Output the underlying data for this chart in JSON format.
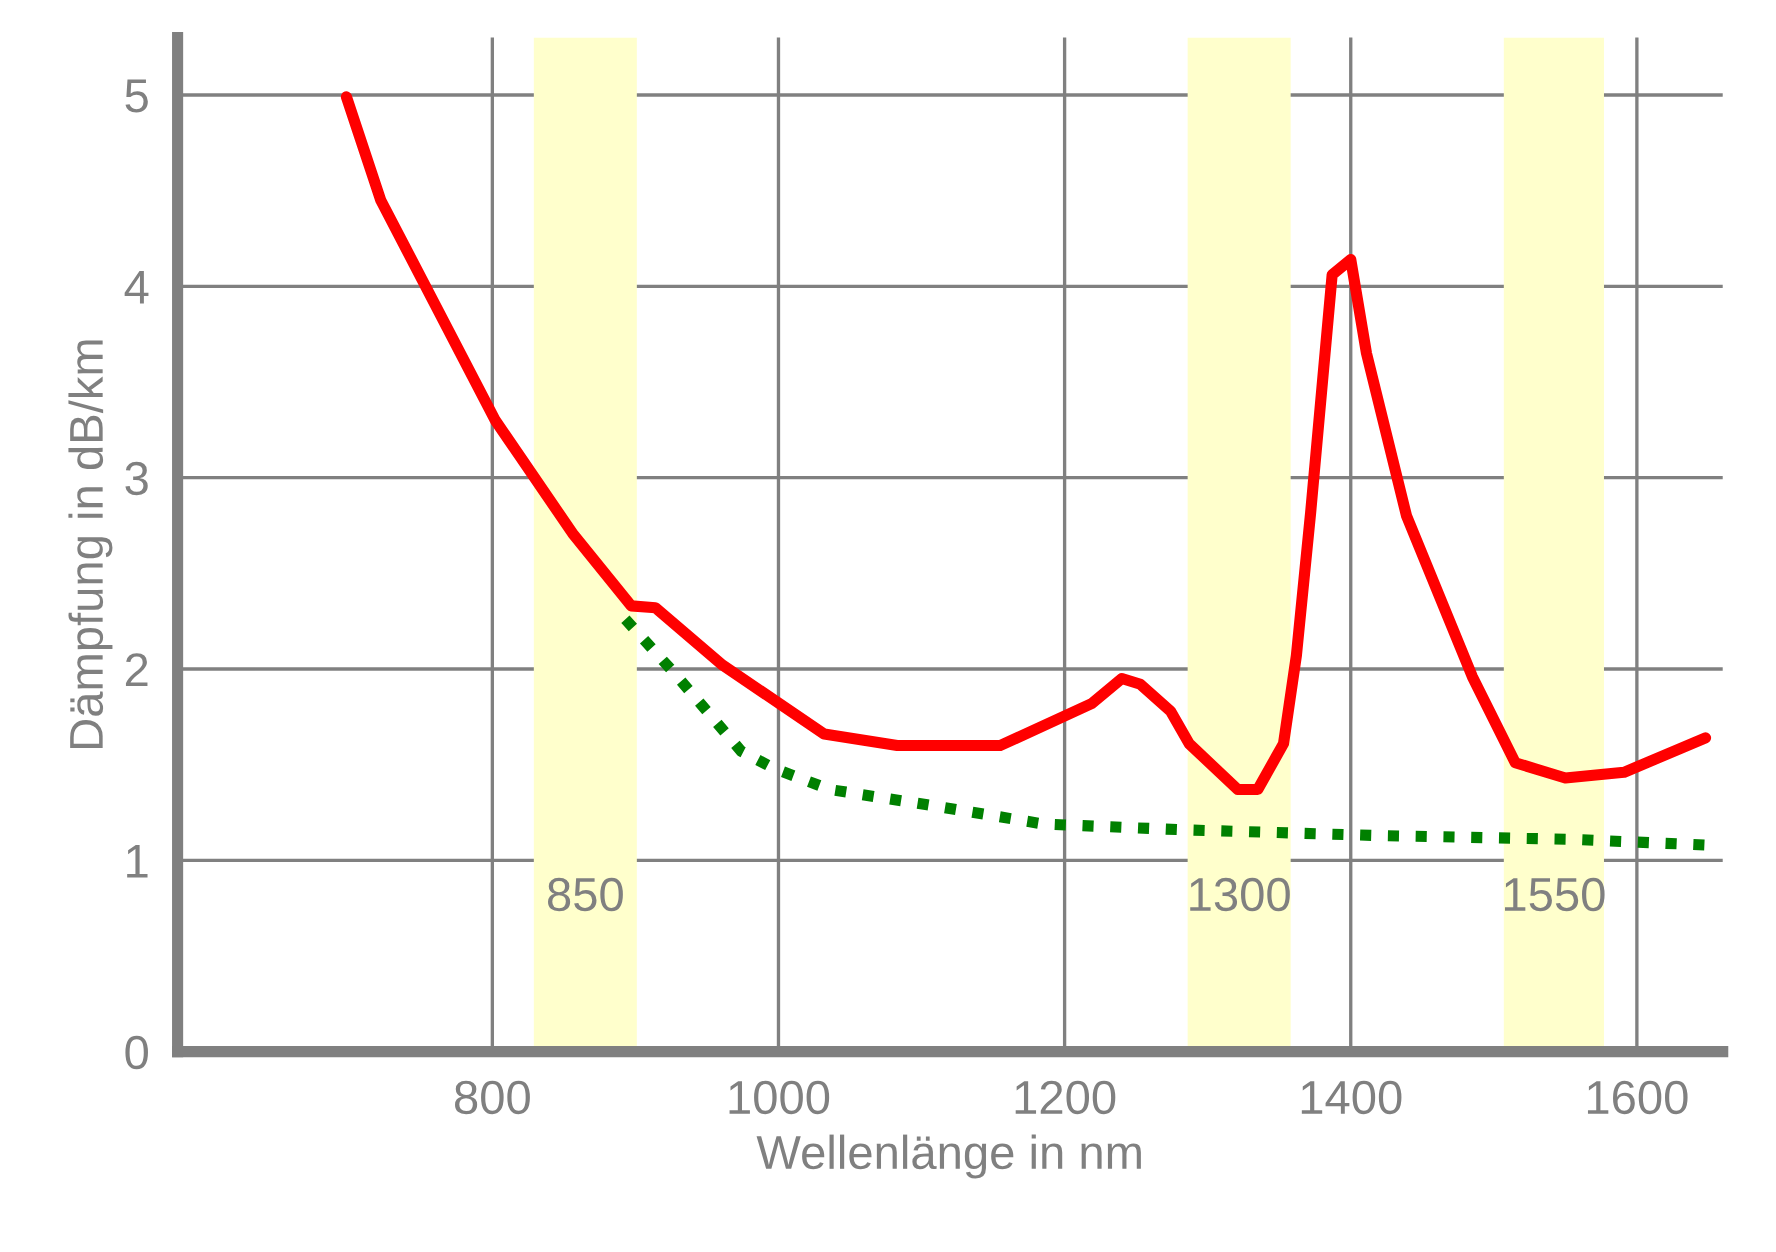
{
  "chart_data": {
    "type": "line",
    "xlabel": "Wellenlänge in nm",
    "ylabel": "Dämpfung in dB/km",
    "xlim": [
      580,
      1660
    ],
    "ylim": [
      0,
      5.3
    ],
    "xticks": [
      800,
      1000,
      1200,
      1400,
      1600
    ],
    "yticks": [
      0,
      1,
      2,
      3,
      4,
      5
    ],
    "grid": true,
    "legend": false,
    "series": [
      {
        "color": "#ff0000",
        "line_style": "solid",
        "x": [
          698,
          722,
          802,
          856,
          897,
          914,
          961,
          1032,
          1083,
          1155,
          1219,
          1240,
          1253,
          1274,
          1287,
          1321,
          1335,
          1353,
          1362,
          1372,
          1387,
          1400,
          1411,
          1439,
          1485,
          1515,
          1550,
          1591,
          1648
        ],
        "values": [
          4.99,
          4.45,
          3.3,
          2.71,
          2.33,
          2.32,
          2.02,
          1.66,
          1.6,
          1.6,
          1.82,
          1.95,
          1.92,
          1.78,
          1.61,
          1.37,
          1.37,
          1.61,
          2.07,
          2.82,
          4.06,
          4.14,
          3.65,
          2.8,
          1.96,
          1.51,
          1.43,
          1.46,
          1.64
        ]
      },
      {
        "color": "#008000",
        "line_style": "dotted",
        "x": [
          893,
          927,
          974,
          997,
          1036,
          1104,
          1185,
          1281,
          1417,
          1553,
          1648
        ],
        "values": [
          2.26,
          1.98,
          1.57,
          1.48,
          1.37,
          1.29,
          1.19,
          1.16,
          1.13,
          1.11,
          1.08
        ]
      }
    ],
    "bands": [
      {
        "axis": "x",
        "from": 829,
        "to": 901,
        "label": "850",
        "color": "#ffffcc"
      },
      {
        "axis": "x",
        "from": 1286,
        "to": 1358,
        "label": "1300",
        "color": "#ffffcc"
      },
      {
        "axis": "x",
        "from": 1507,
        "to": 1577,
        "label": "1550",
        "color": "#ffffcc"
      }
    ]
  }
}
